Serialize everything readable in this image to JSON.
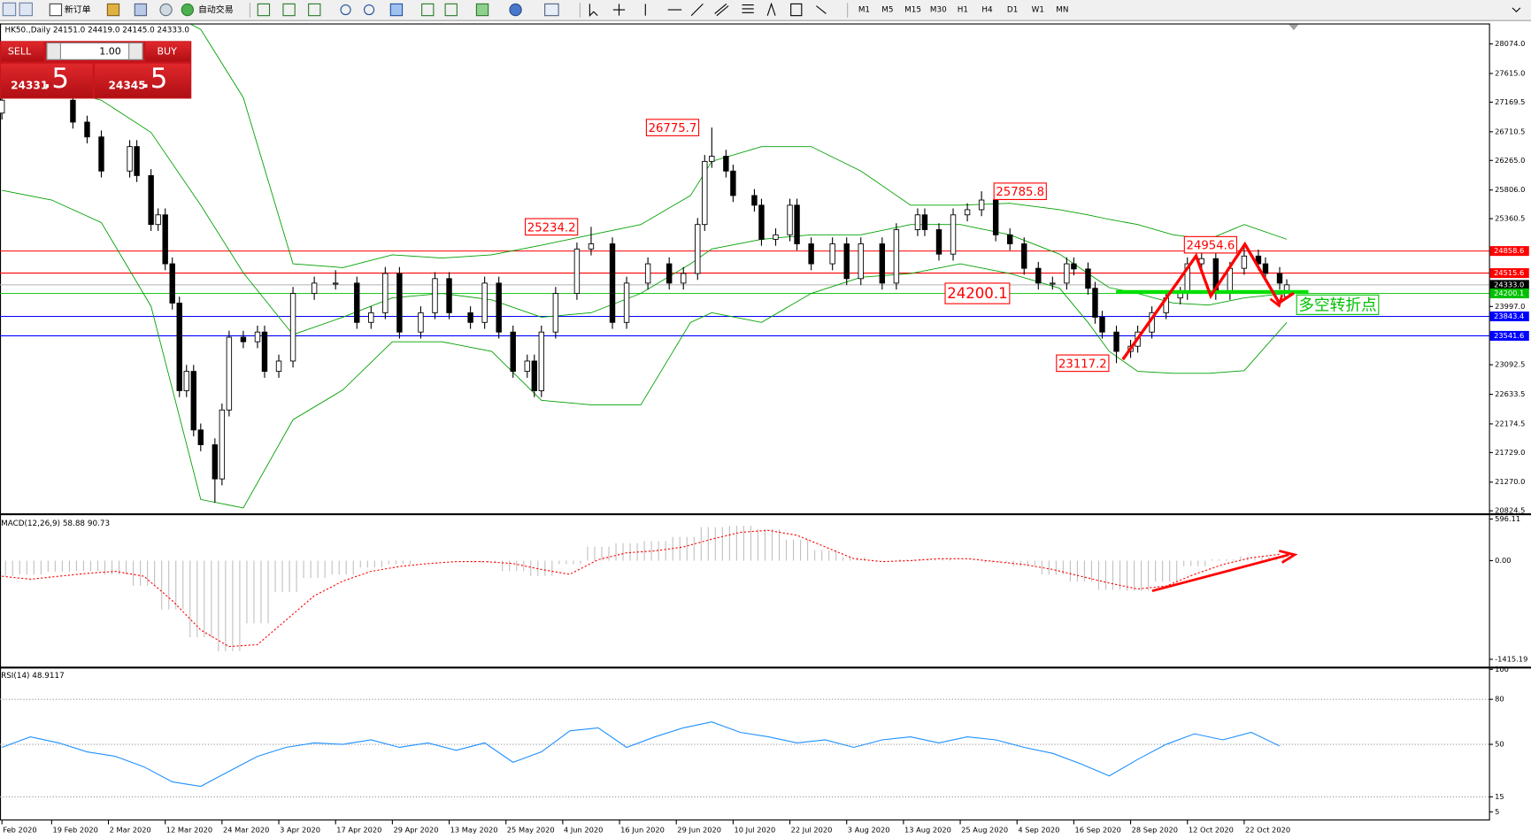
{
  "toolbar": {
    "new_order": "新订单",
    "auto_trading": "自动交易",
    "timeframes": [
      "M1",
      "M5",
      "M15",
      "M30",
      "H1",
      "H4",
      "D1",
      "W1",
      "MN"
    ]
  },
  "trade_panel": {
    "sell": "SELL",
    "buy": "BUY",
    "volume": "1.00",
    "sell_price_main": "24331",
    "sell_price_frac": ".5",
    "buy_price_main": "24345",
    "buy_price_frac": ".5"
  },
  "chart_data": [
    {
      "type": "candlestick",
      "title": "HK50.,Daily  24151.0 24419.0 24145.0 24333.0",
      "ylim": [
        20794,
        28377
      ],
      "yticks": [
        {
          "value": 28074,
          "label": "28074.0"
        },
        {
          "value": 27615,
          "label": "27615.0"
        },
        27169.5,
        26710.5,
        {
          "value": 26265,
          "label": "26265.0"
        },
        {
          "value": 25806,
          "label": "25806.0"
        },
        25360.5,
        {
          "value": 23997,
          "label": "23997.0"
        },
        23092.5,
        22633.5,
        22174.5,
        {
          "value": 21729,
          "label": "21729.0"
        },
        {
          "value": 21270,
          "label": "21270.0"
        },
        20824.5
      ],
      "price_lines": [
        {
          "value": 24858.6,
          "label": "24858.6",
          "color": "#ff0000"
        },
        {
          "value": 24515.6,
          "label": "24515.6",
          "color": "#ff0000"
        },
        {
          "value": 24333,
          "label": "24333.0",
          "color": "#000000"
        },
        {
          "value": 24200.1,
          "label": "24200.1",
          "color": "#00c000"
        },
        {
          "value": 23843.4,
          "label": "23843.4",
          "color": "#0000ff"
        },
        {
          "value": 23541.6,
          "label": "23541.6",
          "color": "#0000ff"
        }
      ],
      "xticks": [
        {
          "value": 0,
          "label": "Feb 2020"
        },
        {
          "value": 7,
          "label": "19 Feb 2020"
        },
        {
          "value": 15,
          "label": "2 Mar 2020"
        },
        {
          "value": 23,
          "label": "12 Mar 2020"
        },
        {
          "value": 31,
          "label": "24 Mar 2020"
        },
        {
          "value": 39,
          "label": "3 Apr 2020"
        },
        {
          "value": 47,
          "label": "17 Apr 2020"
        },
        {
          "value": 55,
          "label": "29 Apr 2020"
        },
        {
          "value": 63,
          "label": "13 May 2020"
        },
        {
          "value": 71,
          "label": "25 May 2020"
        },
        {
          "value": 79,
          "label": "4 Jun 2020"
        },
        {
          "value": 87,
          "label": "16 Jun 2020"
        },
        {
          "value": 95,
          "label": "29 Jun 2020"
        },
        {
          "value": 103,
          "label": "10 Jul 2020"
        },
        {
          "value": 111,
          "label": "22 Jul 2020"
        },
        {
          "value": 119,
          "label": "3 Aug 2020"
        },
        {
          "value": 127,
          "label": "13 Aug 2020"
        },
        {
          "value": 135,
          "label": "25 Aug 2020"
        },
        {
          "value": 143,
          "label": "4 Sep 2020"
        },
        {
          "value": 151,
          "label": "16 Sep 2020"
        },
        {
          "value": 159,
          "label": "28 Sep 2020"
        },
        {
          "value": 167,
          "label": "12 Oct 2020"
        },
        {
          "value": 175,
          "label": "22 Oct 2020"
        }
      ],
      "x": [
        0,
        10,
        12,
        14,
        18,
        19,
        21,
        22,
        23,
        24,
        25,
        26,
        27,
        28,
        30,
        31,
        32,
        34,
        36,
        37,
        39,
        41,
        44,
        47,
        50,
        52,
        54,
        56,
        59,
        61,
        63,
        66,
        68,
        70,
        72,
        74,
        75,
        76,
        78,
        81,
        83,
        86,
        88,
        91,
        94,
        96,
        98,
        99,
        100,
        102,
        103,
        106,
        107,
        109,
        111,
        112,
        114,
        117,
        119,
        121,
        124,
        126,
        129,
        130,
        132,
        134,
        136,
        138,
        140,
        142,
        144,
        146,
        148,
        150,
        151,
        153,
        154,
        155,
        157,
        159,
        160,
        162,
        164,
        166,
        167,
        169,
        171,
        173,
        175,
        177,
        178,
        180,
        181
      ],
      "candles": [
        [
          27000,
          27300,
          26900,
          27200
        ],
        [
          27200,
          27300,
          26760,
          26860
        ],
        [
          26860,
          26960,
          26530,
          26630
        ],
        [
          26630,
          26730,
          26000,
          26100
        ],
        [
          26100,
          26580,
          26000,
          26480
        ],
        [
          26480,
          26580,
          25930,
          26030
        ],
        [
          26030,
          26130,
          25170,
          25270
        ],
        [
          25270,
          25520,
          25170,
          25420
        ],
        [
          25420,
          25520,
          24560,
          24660
        ],
        [
          24660,
          24760,
          23950,
          24050
        ],
        [
          24050,
          24150,
          22590,
          22690
        ],
        [
          22690,
          23090,
          22590,
          22990
        ],
        [
          22990,
          23090,
          21980,
          22080
        ],
        [
          22080,
          22180,
          21750,
          21850
        ],
        [
          21850,
          21950,
          20950,
          21320
        ],
        [
          21320,
          22490,
          21220,
          22390
        ],
        [
          22390,
          23620,
          22290,
          23520
        ],
        [
          23520,
          23620,
          23350,
          23450
        ],
        [
          23450,
          23700,
          23350,
          23600
        ],
        [
          23600,
          23700,
          22890,
          22990
        ],
        [
          22990,
          23250,
          22890,
          23150
        ],
        [
          23150,
          24300,
          23050,
          24200
        ],
        [
          24200,
          24460,
          24100,
          24360
        ],
        [
          24360,
          24560,
          24260,
          24360
        ],
        [
          24360,
          24460,
          23650,
          23750
        ],
        [
          23750,
          24000,
          23650,
          23900
        ],
        [
          23900,
          24610,
          23800,
          24510
        ],
        [
          24510,
          24610,
          23500,
          23600
        ],
        [
          23600,
          24000,
          23500,
          23900
        ],
        [
          23900,
          24530,
          23800,
          24430
        ],
        [
          24430,
          24530,
          23800,
          23900
        ],
        [
          23900,
          24000,
          23650,
          23750
        ],
        [
          23750,
          24460,
          23650,
          24360
        ],
        [
          24360,
          24460,
          23500,
          23600
        ],
        [
          23600,
          23700,
          22890,
          22990
        ],
        [
          22990,
          23250,
          22890,
          23150
        ],
        [
          23150,
          23250,
          22590,
          22690
        ],
        [
          22690,
          23700,
          22590,
          23600
        ],
        [
          23600,
          24300,
          23500,
          24200
        ],
        [
          24200,
          24990,
          24100,
          24890
        ],
        [
          24890,
          25234.2,
          24790,
          24970
        ],
        [
          24970,
          25070,
          23650,
          23750
        ],
        [
          23750,
          24460,
          23650,
          24360
        ],
        [
          24360,
          24760,
          24260,
          24660
        ],
        [
          24660,
          24760,
          24260,
          24360
        ],
        [
          24360,
          24610,
          24260,
          24510
        ],
        [
          24510,
          25370,
          24410,
          25270
        ],
        [
          25270,
          26350,
          25170,
          26250
        ],
        [
          26250,
          26775.7,
          26150,
          26330
        ],
        [
          26330,
          26430,
          26000,
          26100
        ],
        [
          26100,
          26200,
          25620,
          25720
        ],
        [
          25720,
          25820,
          25470,
          25570
        ],
        [
          25570,
          25670,
          24940,
          25040
        ],
        [
          25040,
          25210,
          24940,
          25110
        ],
        [
          25110,
          25670,
          25010,
          25570
        ],
        [
          25570,
          25670,
          24870,
          24970
        ],
        [
          24970,
          25070,
          24560,
          24660
        ],
        [
          24660,
          25070,
          24560,
          24970
        ],
        [
          24970,
          25070,
          24330,
          24430
        ],
        [
          24430,
          25070,
          24330,
          24970
        ],
        [
          24970,
          25070,
          24260,
          24360
        ],
        [
          24360,
          25290,
          24260,
          25190
        ],
        [
          25190,
          25520,
          25090,
          25420
        ],
        [
          25420,
          25520,
          25090,
          25190
        ],
        [
          25190,
          25290,
          24710,
          24810
        ],
        [
          24810,
          25520,
          24710,
          25420
        ],
        [
          25420,
          25600,
          25320,
          25500
        ],
        [
          25500,
          25785.8,
          25400,
          25650
        ],
        [
          25650,
          25750,
          25010,
          25110
        ],
        [
          25110,
          25210,
          24870,
          24970
        ],
        [
          24970,
          25070,
          24490,
          24590
        ],
        [
          24590,
          24690,
          24260,
          24360
        ],
        [
          24360,
          24460,
          24260,
          24360
        ],
        [
          24360,
          24760,
          24260,
          24660
        ],
        [
          24660,
          24760,
          24480,
          24580
        ],
        [
          24580,
          24680,
          24180,
          24280
        ],
        [
          24280,
          24380,
          23730,
          23830
        ],
        [
          23830,
          23930,
          23500,
          23600
        ],
        [
          23600,
          23700,
          23117.2,
          23300
        ],
        [
          23300,
          23480,
          23200,
          23380
        ],
        [
          23380,
          23700,
          23280,
          23600
        ],
        [
          23600,
          24000,
          23500,
          23900
        ],
        [
          23900,
          24230,
          23800,
          24130
        ],
        [
          24130,
          24300,
          24030,
          24200
        ],
        [
          24200,
          24760,
          24100,
          24660
        ],
        [
          24660,
          24840,
          24560,
          24740
        ],
        [
          24740,
          24840,
          24100,
          24200
        ],
        [
          24200,
          24690,
          24100,
          24590
        ],
        [
          24590,
          24954.6,
          24490,
          24780
        ],
        [
          24780,
          24880,
          24560,
          24660
        ],
        [
          24660,
          24760,
          24410,
          24510
        ],
        [
          24510,
          24610,
          24260,
          24360
        ],
        [
          24151,
          24419,
          24145,
          24333
        ]
      ],
      "bands": {
        "color": "#00a000",
        "x": [
          0,
          7,
          14,
          21,
          28,
          34,
          41,
          48,
          55,
          62,
          69,
          76,
          83,
          90,
          97,
          100,
          107,
          114,
          121,
          128,
          135,
          142,
          149,
          153,
          156,
          160,
          165,
          170,
          175,
          181
        ],
        "upper": [
          28600,
          28700,
          28800,
          28700,
          28300,
          27240,
          24660,
          24600,
          24800,
          24750,
          24800,
          24950,
          25110,
          25270,
          25720,
          26250,
          26480,
          26480,
          26100,
          25570,
          25570,
          25600,
          25500,
          25420,
          25350,
          25270,
          25110,
          25040,
          25270,
          25040
        ],
        "middle": [
          27300,
          27400,
          27200,
          26700,
          25570,
          24520,
          23560,
          23830,
          24130,
          24200,
          24100,
          23830,
          23900,
          24200,
          24660,
          24890,
          25040,
          25110,
          25110,
          25270,
          25270,
          25110,
          24810,
          24510,
          24290,
          24200,
          24050,
          24020,
          24130,
          24200
        ],
        "lower": [
          25800,
          25650,
          25300,
          24000,
          21000,
          20870,
          22240,
          22700,
          23450,
          23450,
          23300,
          22540,
          22470,
          22470,
          23750,
          23900,
          23750,
          24200,
          24450,
          24510,
          24660,
          24510,
          24280,
          23750,
          23300,
          22990,
          22960,
          22960,
          23000,
          23750
        ]
      },
      "annotations": [
        {
          "value": 26775.7,
          "label": "26775.7"
        },
        {
          "value": 25234.2,
          "label": "25234.2"
        },
        {
          "value": 25785.8,
          "label": "25785.8"
        },
        {
          "value": 24954.6,
          "label": "24954.6"
        },
        {
          "value": 24200.1,
          "label": "24200.1"
        },
        {
          "value": 23117.2,
          "label": "23117.2"
        }
      ],
      "note": "多空转折点"
    },
    {
      "type": "macd",
      "title": "MACD(12,26,9) 58.88 90.73",
      "ylim": [
        -1513,
        644
      ],
      "yticks": [
        596.11,
        {
          "value": 0,
          "label": "0.00"
        },
        -1415.19
      ],
      "x": [
        0,
        4,
        8,
        12,
        16,
        20,
        24,
        28,
        32,
        36,
        40,
        44,
        48,
        52,
        56,
        60,
        64,
        68,
        72,
        76,
        80,
        84,
        88,
        92,
        96,
        100,
        104,
        108,
        112,
        116,
        120,
        124,
        128,
        132,
        136,
        140,
        144,
        148,
        152,
        156,
        160,
        164,
        168,
        172,
        176,
        180
      ],
      "histogram": [
        -220,
        -200,
        -160,
        -150,
        -200,
        -360,
        -700,
        -1100,
        -1300,
        -900,
        -450,
        -250,
        -200,
        -100,
        -50,
        0,
        0,
        -30,
        -150,
        -220,
        -50,
        200,
        250,
        280,
        340,
        480,
        500,
        450,
        300,
        150,
        50,
        0,
        20,
        30,
        0,
        -30,
        -80,
        -200,
        -300,
        -420,
        -430,
        -300,
        -80,
        20,
        60,
        58.88
      ],
      "signal": [
        -224,
        -266,
        -224,
        -182,
        -154,
        -224,
        -574,
        -995,
        -1233,
        -1205,
        -855,
        -504,
        -294,
        -154,
        -84,
        -42,
        -14,
        -14,
        -42,
        -126,
        -196,
        14,
        112,
        140,
        196,
        308,
        406,
        434,
        364,
        196,
        28,
        -14,
        0,
        28,
        28,
        -14,
        -56,
        -126,
        -224,
        -322,
        -406,
        -364,
        -196,
        -56,
        42,
        90.73
      ],
      "histogram_color": "#c0c0c0",
      "signal_color": "#ff0000"
    },
    {
      "type": "line",
      "title": "RSI(14) 48.9117",
      "ylim": [
        0,
        100
      ],
      "yticks": [
        100,
        80,
        50,
        15,
        5
      ],
      "levels": [
        80,
        50,
        15
      ],
      "x": [
        0,
        4,
        8,
        12,
        16,
        20,
        24,
        28,
        32,
        36,
        40,
        44,
        48,
        52,
        56,
        60,
        64,
        68,
        72,
        76,
        80,
        84,
        88,
        92,
        96,
        100,
        104,
        108,
        112,
        116,
        120,
        124,
        128,
        132,
        136,
        140,
        144,
        148,
        152,
        156,
        160,
        164,
        168,
        172,
        176,
        180
      ],
      "values": [
        48,
        55,
        51,
        45,
        42,
        35,
        25,
        22,
        32,
        42,
        48,
        51,
        50,
        53,
        48,
        51,
        46,
        51,
        38,
        45,
        59,
        61,
        48,
        55,
        61,
        65,
        58,
        55,
        51,
        53,
        48,
        53,
        55,
        51,
        55,
        53,
        48,
        44,
        37,
        29,
        40,
        50,
        57,
        53,
        58,
        48.9117
      ],
      "color": "#1e90ff"
    }
  ]
}
